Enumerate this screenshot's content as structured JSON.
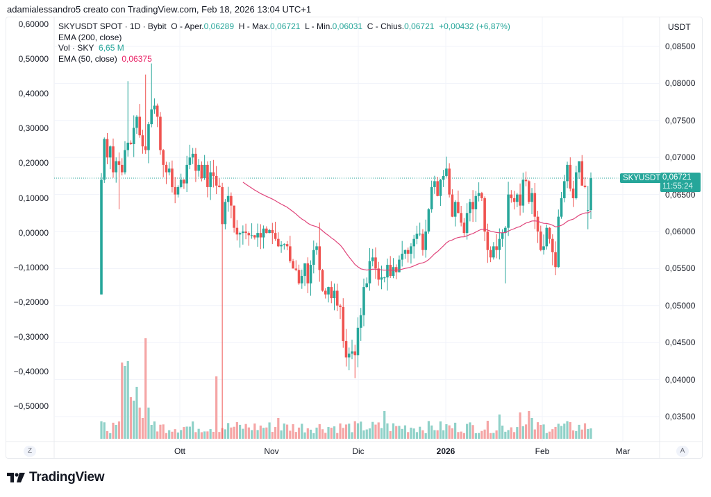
{
  "caption": "adamialessandro5 creato con TradingView.com, Feb 18, 2026 13:04 UTC+1",
  "legend": {
    "symbol_line": "SKYUSDT SPOT · 1D · Bybit",
    "open_label": "O - Aper.",
    "open": "0,06289",
    "high_label": "H - Max.",
    "high": "0,06721",
    "low_label": "L - Min.",
    "low": "0,06031",
    "close_label": "C - Chius.",
    "close": "0,06721",
    "change": "+0,00432 (+6,87%)",
    "ema200_label": "EMA (200, close)",
    "vol_label": "Vol · SKY",
    "vol_value": "6,65 M",
    "ema50_label": "EMA (50, close)",
    "ema50_value": "0,06375"
  },
  "right_axis": {
    "unit": "USDT",
    "ticks": [
      "0,08500",
      "0,08000",
      "0,07500",
      "0,07000",
      "0,06500",
      "0,06000",
      "0,05500",
      "0,05000",
      "0,04500",
      "0,04000",
      "0,03500"
    ]
  },
  "left_axis": {
    "ticks": [
      "0,60000",
      "0,50000",
      "0,40000",
      "0,30000",
      "0,20000",
      "0,10000",
      "0,00000",
      "−0,10000",
      "−0,20000",
      "−0,30000",
      "−0,40000",
      "−0,50000"
    ]
  },
  "x_axis": {
    "labels": [
      "Ott",
      "Nov",
      "Dic",
      "2026",
      "Feb",
      "Mar"
    ]
  },
  "price_tag": {
    "symbol": "SKYUSDT",
    "price": "0,06721",
    "countdown": "11:55:24"
  },
  "corner_buttons": {
    "left": "Z",
    "right": "A"
  },
  "logo": {
    "text": "TradingView"
  },
  "colors": {
    "up": "#26a69a",
    "down": "#ef5350",
    "vol_up": "#8fd1c8",
    "vol_down": "#f5a5a5",
    "ema50": "#e0457b",
    "grid": "#f0f3fa"
  },
  "chart_data": {
    "type": "candlestick",
    "title": "SKYUSDT SPOT · 1D · Bybit",
    "xlabel": "",
    "ylabel": "USDT",
    "ylim": [
      0.032,
      0.0865
    ],
    "x_ticks": [
      "Ott",
      "Nov",
      "Dic",
      "2026",
      "Feb",
      "Mar"
    ],
    "series": [
      {
        "name": "SKYUSDT close (approx, daily)",
        "values": [
          0.067,
          0.0725,
          0.07,
          0.0715,
          0.068,
          0.0695,
          0.069,
          0.068,
          0.071,
          0.072,
          0.0718,
          0.074,
          0.0755,
          0.073,
          0.0715,
          0.071,
          0.0745,
          0.0765,
          0.077,
          0.0755,
          0.071,
          0.069,
          0.068,
          0.0685,
          0.066,
          0.065,
          0.066,
          0.067,
          0.0665,
          0.069,
          0.07,
          0.0705,
          0.0682,
          0.069,
          0.0672,
          0.069,
          0.066,
          0.068,
          0.0675,
          0.0662,
          0.066,
          0.061,
          0.064,
          0.0648,
          0.0635,
          0.0605,
          0.0596,
          0.0598,
          0.06,
          0.0598,
          0.0595,
          0.0595,
          0.0592,
          0.0598,
          0.0592,
          0.0604,
          0.0598,
          0.0602,
          0.0598,
          0.059,
          0.058,
          0.0582,
          0.0583,
          0.058,
          0.056,
          0.055,
          0.0548,
          0.053,
          0.054,
          0.0557,
          0.053,
          0.0555,
          0.0575,
          0.058,
          0.0548,
          0.052,
          0.0515,
          0.0525,
          0.051,
          0.052,
          0.05,
          0.0498,
          0.0452,
          0.043,
          0.0435,
          0.0438,
          0.0433,
          0.047,
          0.0487,
          0.0525,
          0.053,
          0.056,
          0.0565,
          0.055,
          0.0535,
          0.0538,
          0.0538,
          0.0555,
          0.054,
          0.0552,
          0.0545,
          0.0562,
          0.057,
          0.0575,
          0.057,
          0.058,
          0.059,
          0.0597,
          0.0597,
          0.0575,
          0.06,
          0.063,
          0.066,
          0.0668,
          0.0648,
          0.067,
          0.0675,
          0.0685,
          0.065,
          0.062,
          0.064,
          0.0625,
          0.0612,
          0.0598,
          0.0625,
          0.064,
          0.063,
          0.0648,
          0.0652,
          0.0645,
          0.06,
          0.0575,
          0.0565,
          0.058,
          0.0575,
          0.059,
          0.0598,
          0.0605,
          0.065,
          0.0645,
          0.064,
          0.065,
          0.0635,
          0.067,
          0.0668,
          0.064,
          0.0652,
          0.062,
          0.06,
          0.0575,
          0.058,
          0.0605,
          0.059,
          0.0572,
          0.0552,
          0.062,
          0.0645,
          0.0668,
          0.069,
          0.0658,
          0.0645,
          0.068,
          0.0695,
          0.0662,
          0.066,
          0.0629,
          0.0672
        ]
      },
      {
        "name": "EMA (50, close)",
        "last": 0.06375
      }
    ],
    "right_axis_ticks": [
      0.085,
      0.08,
      0.075,
      0.07,
      0.065,
      0.06,
      0.055,
      0.05,
      0.045,
      0.04,
      0.035
    ],
    "last_price": 0.06721,
    "annotations": [
      "SKYUSDT 0,06721 11:55:24"
    ]
  }
}
